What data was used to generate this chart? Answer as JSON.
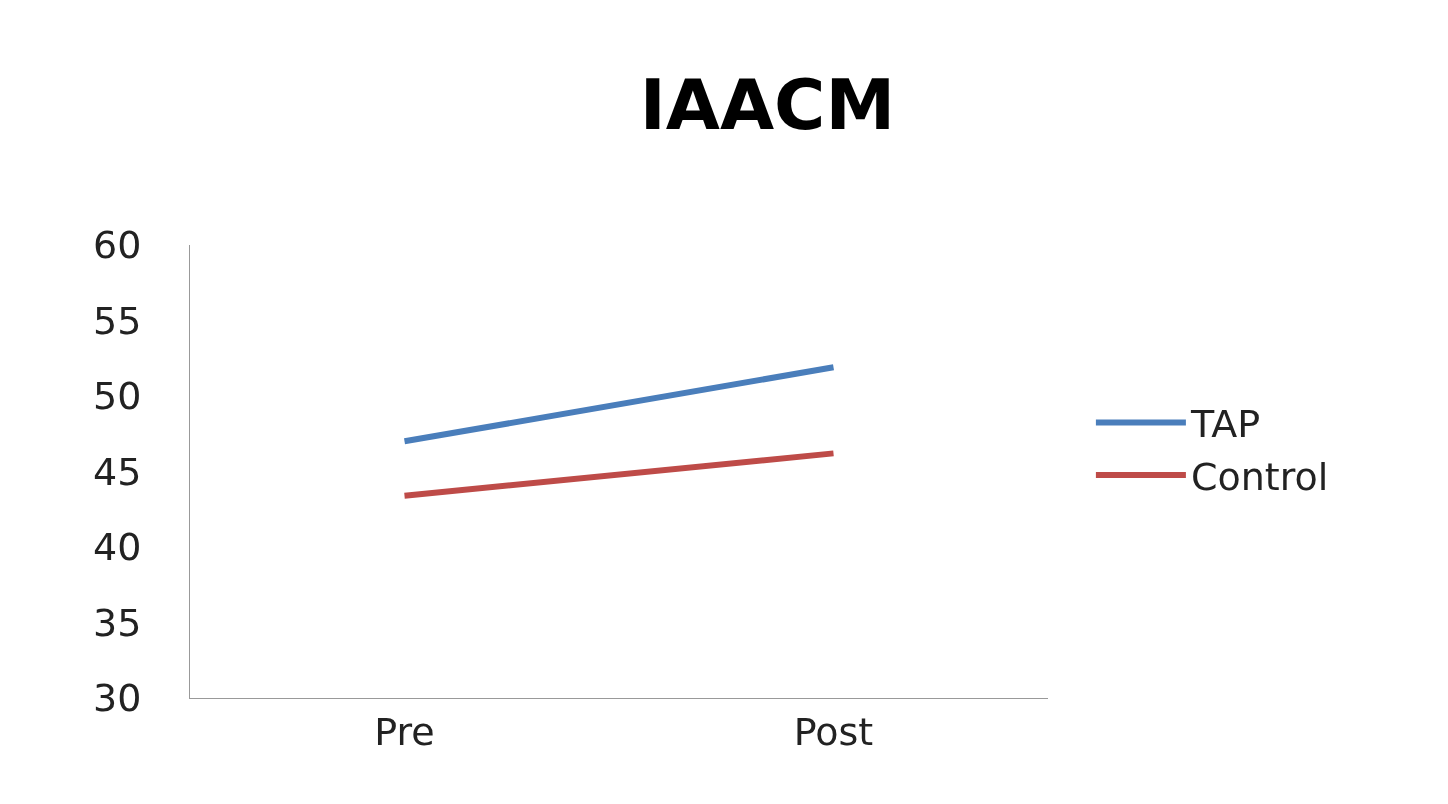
{
  "chart_data": {
    "type": "line",
    "title": "IAACM",
    "categories": [
      "Pre",
      "Post"
    ],
    "series": [
      {
        "name": "TAP",
        "color": "#4a7ebb",
        "values": [
          47.0,
          51.9
        ]
      },
      {
        "name": "Control",
        "color": "#be4b48",
        "values": [
          43.4,
          46.2
        ]
      }
    ],
    "ylim": [
      30,
      60
    ],
    "yticks": [
      30,
      35,
      40,
      45,
      50,
      55,
      60
    ],
    "legend": "right",
    "marker": "none",
    "line_style": "solid"
  }
}
